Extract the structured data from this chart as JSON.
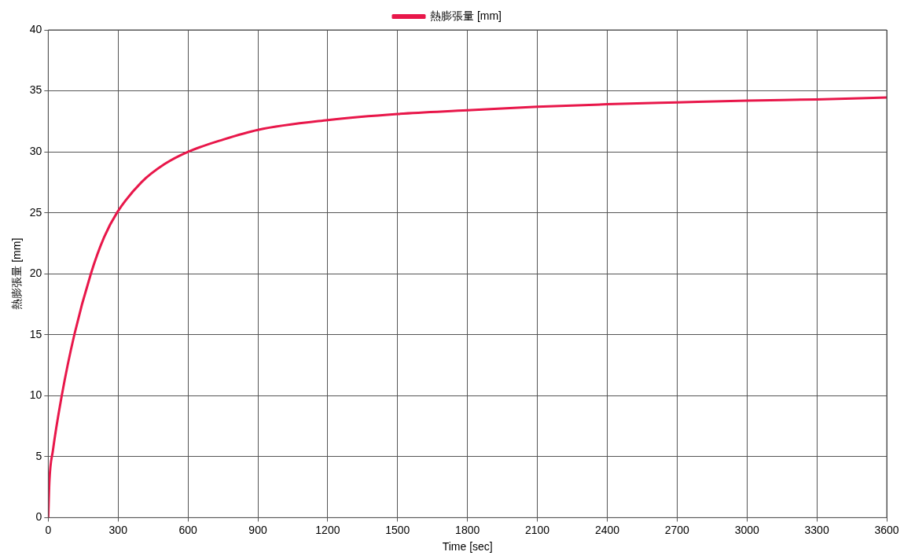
{
  "chart_data": {
    "type": "line",
    "xlabel": "Time [sec]",
    "ylabel": "熱膨張量 [mm]",
    "xlim": [
      0,
      3600
    ],
    "xticks": [
      0,
      300,
      600,
      900,
      1200,
      1500,
      1800,
      2100,
      2400,
      2700,
      3000,
      3300,
      3600
    ],
    "ylim": [
      0,
      40
    ],
    "yticks": [
      0,
      5,
      10,
      15,
      20,
      25,
      30,
      35,
      40
    ],
    "grid": true,
    "legend": "top",
    "marker": "none",
    "line_style": "solid",
    "series": [
      {
        "name": "熱膨張量 [mm]",
        "color": "#e8174a",
        "x": [
          0,
          5,
          20,
          58,
          112,
          183,
          240,
          295,
          400,
          500,
          600,
          750,
          900,
          1200,
          1500,
          1800,
          2100,
          2400,
          2700,
          3000,
          3300,
          3600
        ],
        "values": [
          0,
          3,
          5.5,
          10,
          15,
          20,
          23,
          25,
          27.5,
          29,
          30,
          31,
          31.8,
          32.6,
          33.1,
          33.4,
          33.7,
          33.9,
          34.05,
          34.2,
          34.3,
          34.45
        ]
      }
    ]
  }
}
